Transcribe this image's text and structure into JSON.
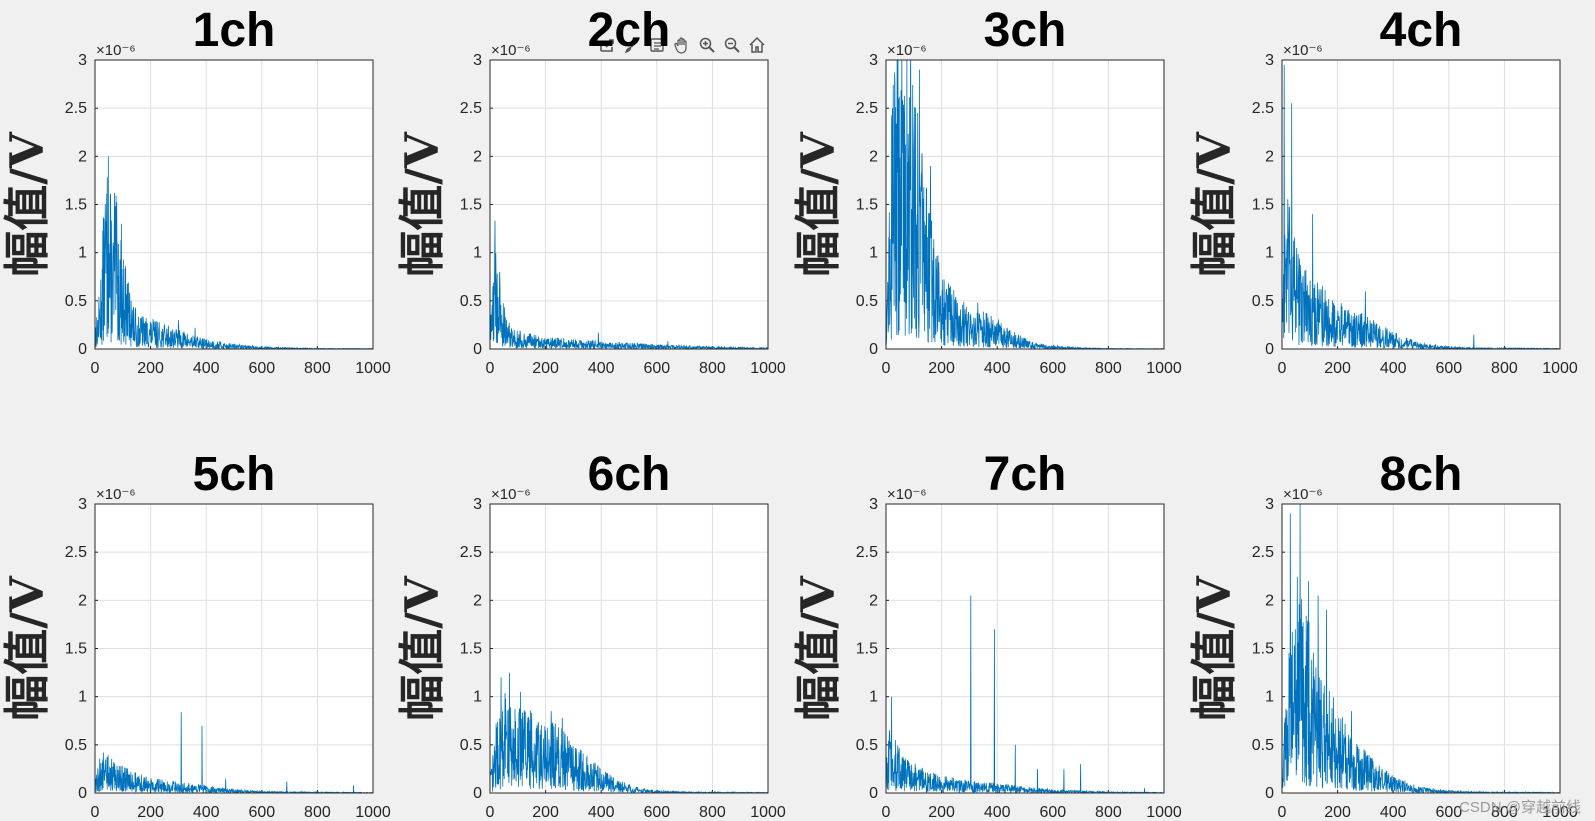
{
  "toolbar": {
    "icons": [
      "export-icon",
      "brush-icon",
      "legend-icon",
      "pan-icon",
      "zoom-in-icon",
      "zoom-out-icon",
      "home-icon"
    ]
  },
  "watermark": "CSDN @穿越前线",
  "colors": {
    "line": "#0072bd",
    "axes": "#262626",
    "grid": "#dfdfdf",
    "background": "#f0f0f0"
  },
  "chart_data": [
    {
      "type": "line",
      "title": "1ch",
      "ylabel": "幅值/V",
      "xlabel": "",
      "exponent": "×10⁻⁶",
      "xlim": [
        0,
        1000
      ],
      "ylim": [
        0,
        3
      ],
      "xticks": [
        "0",
        "200",
        "400",
        "600",
        "800",
        "1000"
      ],
      "yticks": [
        "0",
        "0.5",
        "1",
        "1.5",
        "2",
        "2.5",
        "3"
      ],
      "grid": true,
      "series": [
        {
          "points": [
            [
              5,
              0.25
            ],
            [
              15,
              0.45
            ],
            [
              25,
              0.8
            ],
            [
              35,
              1.35
            ],
            [
              45,
              1.5
            ],
            [
              55,
              1.3
            ],
            [
              65,
              1.05
            ],
            [
              75,
              1.25
            ],
            [
              85,
              1.0
            ],
            [
              100,
              0.8
            ],
            [
              120,
              0.55
            ],
            [
              140,
              0.35
            ],
            [
              160,
              0.28
            ],
            [
              200,
              0.25
            ],
            [
              250,
              0.2
            ],
            [
              300,
              0.17
            ],
            [
              350,
              0.11
            ],
            [
              400,
              0.08
            ],
            [
              450,
              0.06
            ],
            [
              500,
              0.04
            ],
            [
              600,
              0.02
            ],
            [
              700,
              0.01
            ],
            [
              800,
              0.005
            ],
            [
              1000,
              0.004
            ]
          ],
          "peaks": [
            [
              48,
              2.0
            ],
            [
              70,
              1.62
            ],
            [
              95,
              1.3
            ],
            [
              130,
              0.5
            ],
            [
              300,
              0.3
            ],
            [
              360,
              0.22
            ]
          ]
        }
      ]
    },
    {
      "type": "line",
      "title": "2ch",
      "ylabel": "幅值/V",
      "xlabel": "",
      "exponent": "×10⁻⁶",
      "xlim": [
        0,
        1000
      ],
      "ylim": [
        0,
        3
      ],
      "xticks": [
        "0",
        "200",
        "400",
        "600",
        "800",
        "1000"
      ],
      "yticks": [
        "0",
        "0.5",
        "1",
        "1.5",
        "2",
        "2.5",
        "3"
      ],
      "grid": true,
      "series": [
        {
          "points": [
            [
              3,
              0.3
            ],
            [
              10,
              0.7
            ],
            [
              18,
              0.95
            ],
            [
              25,
              0.75
            ],
            [
              35,
              0.55
            ],
            [
              50,
              0.35
            ],
            [
              70,
              0.22
            ],
            [
              100,
              0.15
            ],
            [
              150,
              0.12
            ],
            [
              200,
              0.1
            ],
            [
              300,
              0.08
            ],
            [
              400,
              0.06
            ],
            [
              500,
              0.05
            ],
            [
              600,
              0.04
            ],
            [
              700,
              0.03
            ],
            [
              800,
              0.02
            ],
            [
              1000,
              0.01
            ]
          ],
          "peaks": [
            [
              18,
              1.33
            ],
            [
              35,
              0.8
            ],
            [
              390,
              0.17
            ],
            [
              640,
              0.08
            ]
          ]
        }
      ]
    },
    {
      "type": "line",
      "title": "3ch",
      "ylabel": "幅值/V",
      "xlabel": "",
      "exponent": "×10⁻⁶",
      "xlim": [
        0,
        1000
      ],
      "ylim": [
        0,
        3
      ],
      "xticks": [
        "0",
        "200",
        "400",
        "600",
        "800",
        "1000"
      ],
      "yticks": [
        "0",
        "0.5",
        "1",
        "1.5",
        "2",
        "2.5",
        "3"
      ],
      "grid": true,
      "series": [
        {
          "points": [
            [
              5,
              0.7
            ],
            [
              15,
              1.6
            ],
            [
              30,
              2.6
            ],
            [
              50,
              2.7
            ],
            [
              70,
              2.6
            ],
            [
              90,
              2.5
            ],
            [
              110,
              2.2
            ],
            [
              130,
              1.6
            ],
            [
              150,
              1.2
            ],
            [
              175,
              0.9
            ],
            [
              200,
              0.7
            ],
            [
              250,
              0.45
            ],
            [
              300,
              0.38
            ],
            [
              350,
              0.3
            ],
            [
              400,
              0.25
            ],
            [
              450,
              0.15
            ],
            [
              500,
              0.09
            ],
            [
              550,
              0.05
            ],
            [
              600,
              0.03
            ],
            [
              700,
              0.01
            ],
            [
              800,
              0.005
            ],
            [
              1000,
              0.003
            ]
          ],
          "peaks": [
            [
              40,
              3.0
            ],
            [
              75,
              3.0
            ],
            [
              120,
              2.9
            ],
            [
              160,
              1.9
            ],
            [
              330,
              0.48
            ]
          ]
        }
      ]
    },
    {
      "type": "line",
      "title": "4ch",
      "ylabel": "幅值/V",
      "xlabel": "",
      "exponent": "×10⁻⁶",
      "xlim": [
        0,
        1000
      ],
      "ylim": [
        0,
        3
      ],
      "xticks": [
        "0",
        "200",
        "400",
        "600",
        "800",
        "1000"
      ],
      "yticks": [
        "0",
        "0.5",
        "1",
        "1.5",
        "2",
        "2.5",
        "3"
      ],
      "grid": true,
      "series": [
        {
          "points": [
            [
              3,
              0.8
            ],
            [
              15,
              1.3
            ],
            [
              30,
              1.1
            ],
            [
              50,
              0.85
            ],
            [
              75,
              0.75
            ],
            [
              100,
              0.6
            ],
            [
              150,
              0.5
            ],
            [
              200,
              0.4
            ],
            [
              250,
              0.32
            ],
            [
              300,
              0.28
            ],
            [
              350,
              0.2
            ],
            [
              400,
              0.14
            ],
            [
              450,
              0.09
            ],
            [
              500,
              0.05
            ],
            [
              600,
              0.02
            ],
            [
              700,
              0.01
            ],
            [
              1000,
              0.005
            ]
          ],
          "peaks": [
            [
              8,
              2.95
            ],
            [
              35,
              2.55
            ],
            [
              110,
              1.4
            ],
            [
              300,
              0.6
            ],
            [
              690,
              0.15
            ]
          ]
        }
      ]
    },
    {
      "type": "line",
      "title": "5ch",
      "ylabel": "幅值/V",
      "xlabel": "",
      "exponent": "×10⁻⁶",
      "xlim": [
        0,
        1000
      ],
      "ylim": [
        0,
        3
      ],
      "xticks": [
        "0",
        "200",
        "400",
        "600",
        "800",
        "1000"
      ],
      "yticks": [
        "0",
        "0.5",
        "1",
        "1.5",
        "2",
        "2.5",
        "3"
      ],
      "grid": true,
      "series": [
        {
          "points": [
            [
              5,
              0.18
            ],
            [
              20,
              0.3
            ],
            [
              40,
              0.32
            ],
            [
              60,
              0.28
            ],
            [
              100,
              0.22
            ],
            [
              150,
              0.16
            ],
            [
              200,
              0.12
            ],
            [
              300,
              0.09
            ],
            [
              400,
              0.06
            ],
            [
              500,
              0.03
            ],
            [
              600,
              0.015
            ],
            [
              700,
              0.01
            ],
            [
              1000,
              0.005
            ]
          ],
          "peaks": [
            [
              30,
              0.42
            ],
            [
              310,
              0.84
            ],
            [
              385,
              0.7
            ],
            [
              470,
              0.15
            ],
            [
              690,
              0.12
            ],
            [
              930,
              0.08
            ]
          ]
        }
      ]
    },
    {
      "type": "line",
      "title": "6ch",
      "ylabel": "幅值/V",
      "xlabel": "",
      "exponent": "×10⁻⁶",
      "xlim": [
        0,
        1000
      ],
      "ylim": [
        0,
        3
      ],
      "xticks": [
        "0",
        "200",
        "400",
        "600",
        "800",
        "1000"
      ],
      "yticks": [
        "0",
        "0.5",
        "1",
        "1.5",
        "2",
        "2.5",
        "3"
      ],
      "grid": true,
      "series": [
        {
          "points": [
            [
              5,
              0.2
            ],
            [
              20,
              0.55
            ],
            [
              40,
              0.75
            ],
            [
              60,
              0.85
            ],
            [
              80,
              0.8
            ],
            [
              100,
              0.75
            ],
            [
              150,
              0.65
            ],
            [
              200,
              0.6
            ],
            [
              250,
              0.55
            ],
            [
              300,
              0.4
            ],
            [
              350,
              0.3
            ],
            [
              400,
              0.2
            ],
            [
              450,
              0.12
            ],
            [
              500,
              0.07
            ],
            [
              550,
              0.04
            ],
            [
              600,
              0.02
            ],
            [
              700,
              0.01
            ],
            [
              1000,
              0.005
            ]
          ],
          "peaks": [
            [
              40,
              1.2
            ],
            [
              70,
              1.25
            ],
            [
              110,
              1.05
            ],
            [
              220,
              0.85
            ],
            [
              260,
              0.78
            ]
          ]
        }
      ]
    },
    {
      "type": "line",
      "title": "7ch",
      "ylabel": "幅值/V",
      "xlabel": "",
      "exponent": "×10⁻⁶",
      "xlim": [
        0,
        1000
      ],
      "ylim": [
        0,
        3
      ],
      "xticks": [
        "0",
        "200",
        "400",
        "600",
        "800",
        "1000"
      ],
      "yticks": [
        "0",
        "0.5",
        "1",
        "1.5",
        "2",
        "2.5",
        "3"
      ],
      "grid": true,
      "series": [
        {
          "points": [
            [
              3,
              0.3
            ],
            [
              15,
              0.6
            ],
            [
              30,
              0.45
            ],
            [
              50,
              0.35
            ],
            [
              100,
              0.25
            ],
            [
              150,
              0.18
            ],
            [
              200,
              0.14
            ],
            [
              300,
              0.1
            ],
            [
              400,
              0.08
            ],
            [
              500,
              0.05
            ],
            [
              600,
              0.03
            ],
            [
              700,
              0.02
            ],
            [
              800,
              0.01
            ],
            [
              1000,
              0.005
            ]
          ],
          "peaks": [
            [
              20,
              1.0
            ],
            [
              305,
              2.05
            ],
            [
              390,
              1.7
            ],
            [
              465,
              0.5
            ],
            [
              545,
              0.25
            ],
            [
              640,
              0.25
            ],
            [
              700,
              0.3
            ],
            [
              930,
              0.05
            ]
          ]
        }
      ]
    },
    {
      "type": "line",
      "title": "8ch",
      "ylabel": "幅值/V",
      "xlabel": "",
      "exponent": "×10⁻⁶",
      "xlim": [
        0,
        1000
      ],
      "ylim": [
        0,
        3
      ],
      "xticks": [
        "0",
        "200",
        "400",
        "600",
        "800",
        "1000"
      ],
      "yticks": [
        "0",
        "0.5",
        "1",
        "1.5",
        "2",
        "2.5",
        "3"
      ],
      "grid": true,
      "series": [
        {
          "points": [
            [
              5,
              0.5
            ],
            [
              20,
              1.1
            ],
            [
              40,
              1.6
            ],
            [
              60,
              1.8
            ],
            [
              80,
              1.5
            ],
            [
              100,
              1.4
            ],
            [
              120,
              1.2
            ],
            [
              150,
              0.95
            ],
            [
              200,
              0.7
            ],
            [
              250,
              0.5
            ],
            [
              300,
              0.35
            ],
            [
              350,
              0.22
            ],
            [
              400,
              0.15
            ],
            [
              450,
              0.09
            ],
            [
              500,
              0.05
            ],
            [
              600,
              0.02
            ],
            [
              700,
              0.01
            ],
            [
              1000,
              0.005
            ]
          ],
          "peaks": [
            [
              30,
              2.9
            ],
            [
              65,
              3.0
            ],
            [
              95,
              2.2
            ],
            [
              130,
              2.05
            ],
            [
              160,
              1.9
            ],
            [
              250,
              0.85
            ]
          ]
        }
      ]
    }
  ]
}
